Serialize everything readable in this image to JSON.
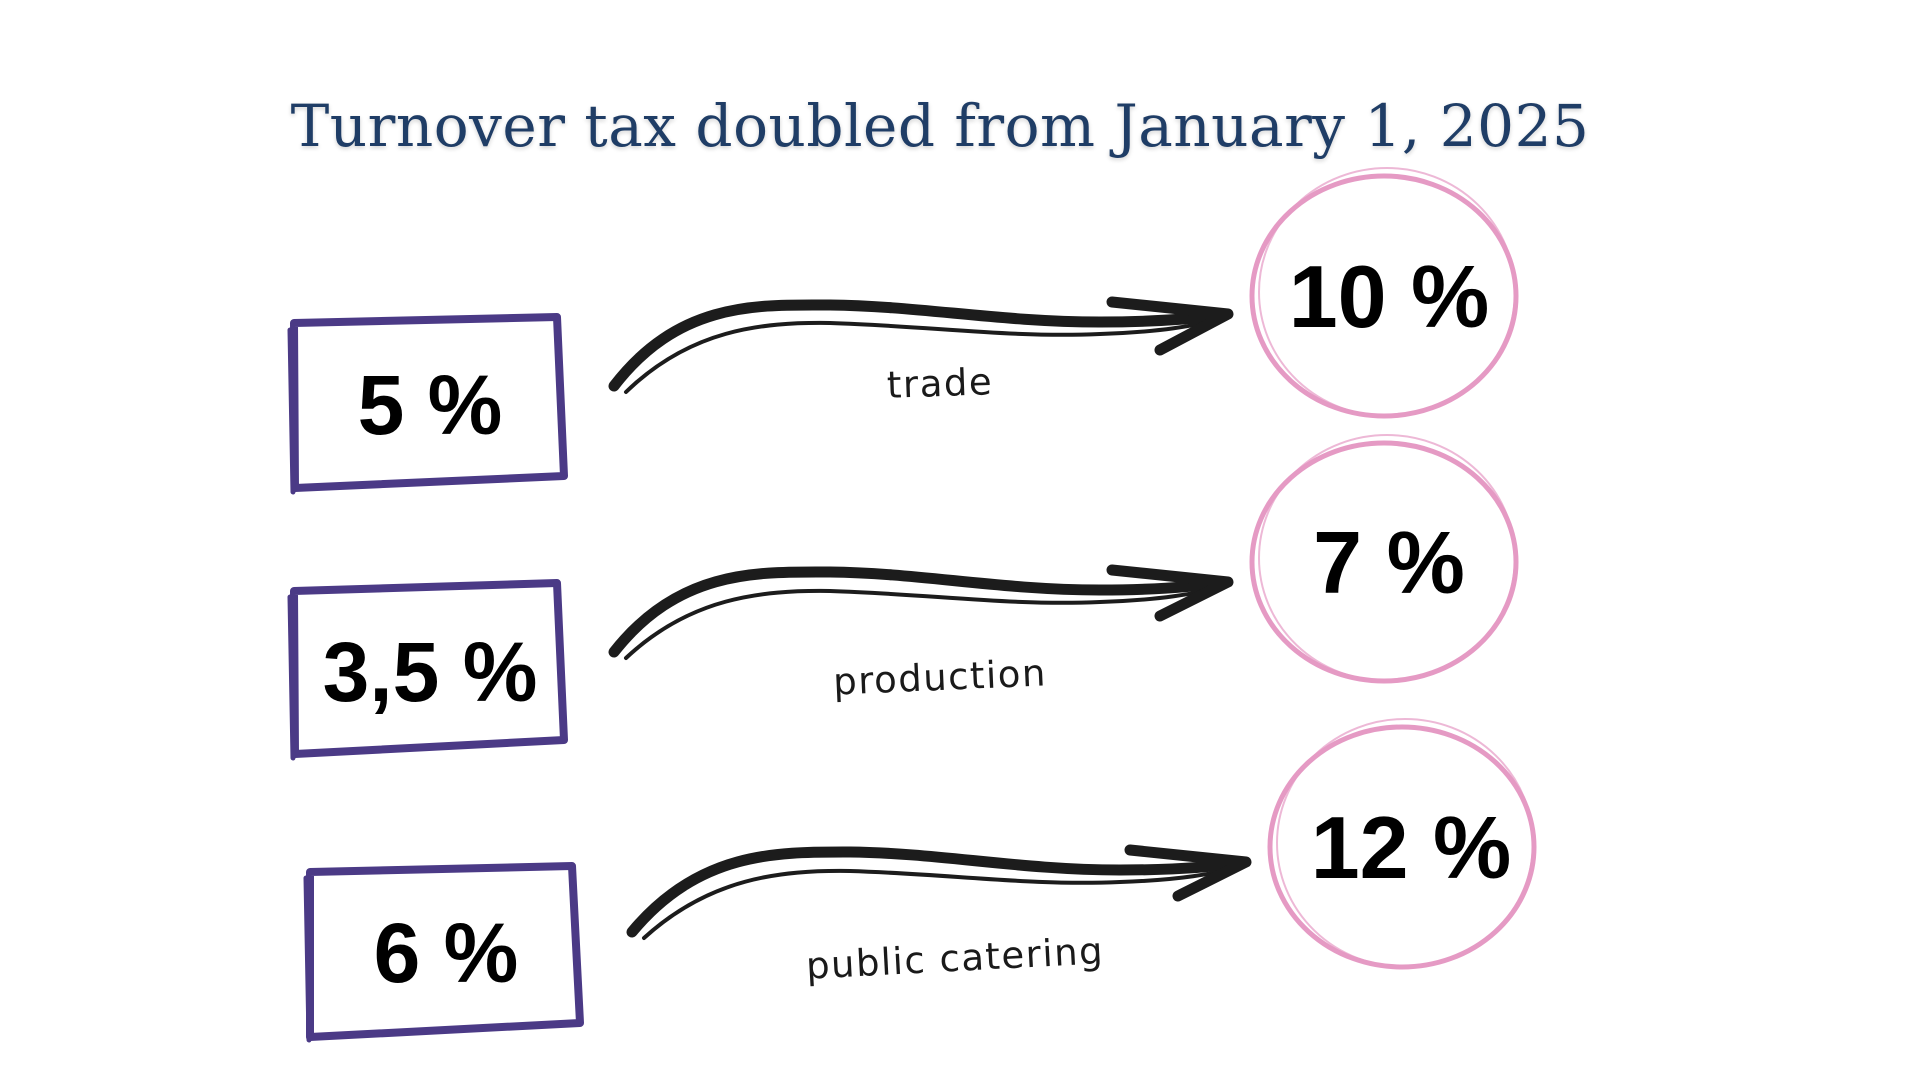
{
  "title": "Turnover tax doubled from January 1, 2025",
  "colors": {
    "title": "#1f3d66",
    "box_border": "#4b3a86",
    "circle_border": "#e59ac4",
    "arrow": "#1c1c1c"
  },
  "rows": [
    {
      "old_rate": "5 %",
      "category": "trade",
      "new_rate": "10 %"
    },
    {
      "old_rate": "3,5 %",
      "category": "production",
      "new_rate": "7 %"
    },
    {
      "old_rate": "6 %",
      "category": "public catering",
      "new_rate": "12 %"
    }
  ]
}
